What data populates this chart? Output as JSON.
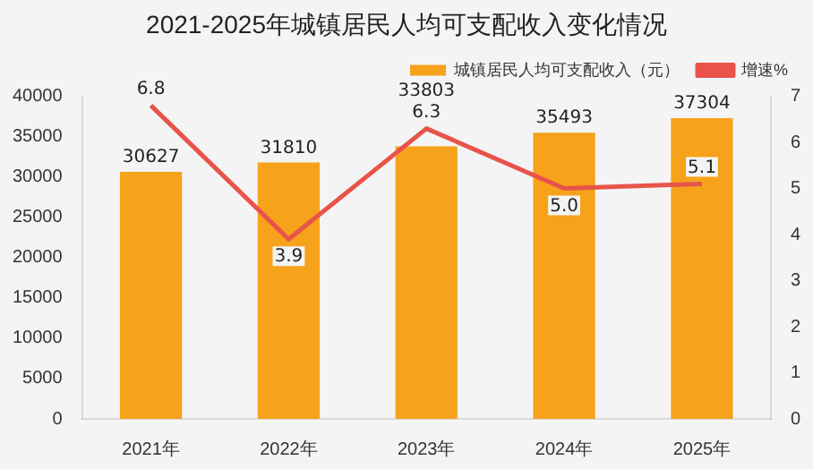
{
  "chart_data": {
    "type": "bar",
    "title": "2021-2025年城镇居民人均可支配收入变化情况",
    "categories": [
      "2021年",
      "2022年",
      "2023年",
      "2024年",
      "2025年"
    ],
    "series": [
      {
        "name": "城镇居民人均可支配收入（元）",
        "color": "#f7a21b",
        "values": [
          30627,
          31810,
          33803,
          35493,
          37304
        ],
        "value_labels": [
          "30627",
          "31810",
          "33803",
          "35493",
          "37304"
        ]
      },
      {
        "name": "增速%",
        "type": "line",
        "axis": "y2",
        "color": "#e8534a",
        "values": [
          6.8,
          3.9,
          6.3,
          5.0,
          5.1
        ],
        "value_labels": [
          "6.8",
          "3.9",
          "6.3",
          "5.0",
          "5.1"
        ]
      }
    ],
    "ylim": [
      0,
      40000
    ],
    "yticks": [
      0,
      5000,
      10000,
      15000,
      20000,
      25000,
      30000,
      35000,
      40000
    ],
    "y2lim": [
      0,
      7
    ],
    "y2ticks": [
      0,
      1,
      2,
      3,
      4,
      5,
      6,
      7
    ],
    "legend": "top right",
    "grid": false,
    "marker": "none",
    "line_style": "solid"
  }
}
